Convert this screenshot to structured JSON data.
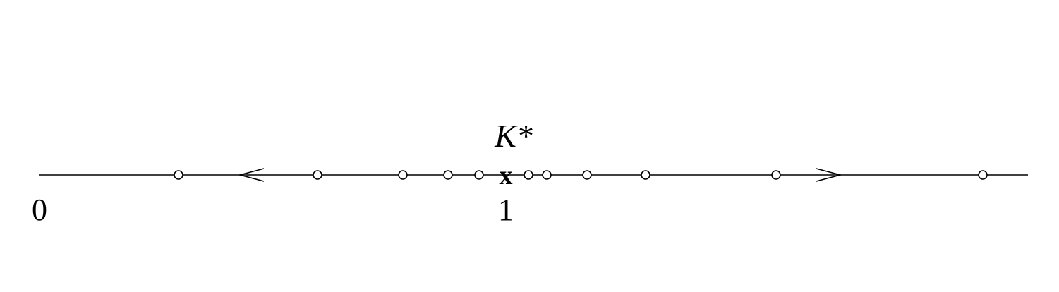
{
  "diagram": {
    "fixed_point_label": "K*",
    "fixed_point_marker": "x",
    "left_label": "0",
    "center_label": "1",
    "arrow_directions": [
      "left",
      "right"
    ]
  }
}
